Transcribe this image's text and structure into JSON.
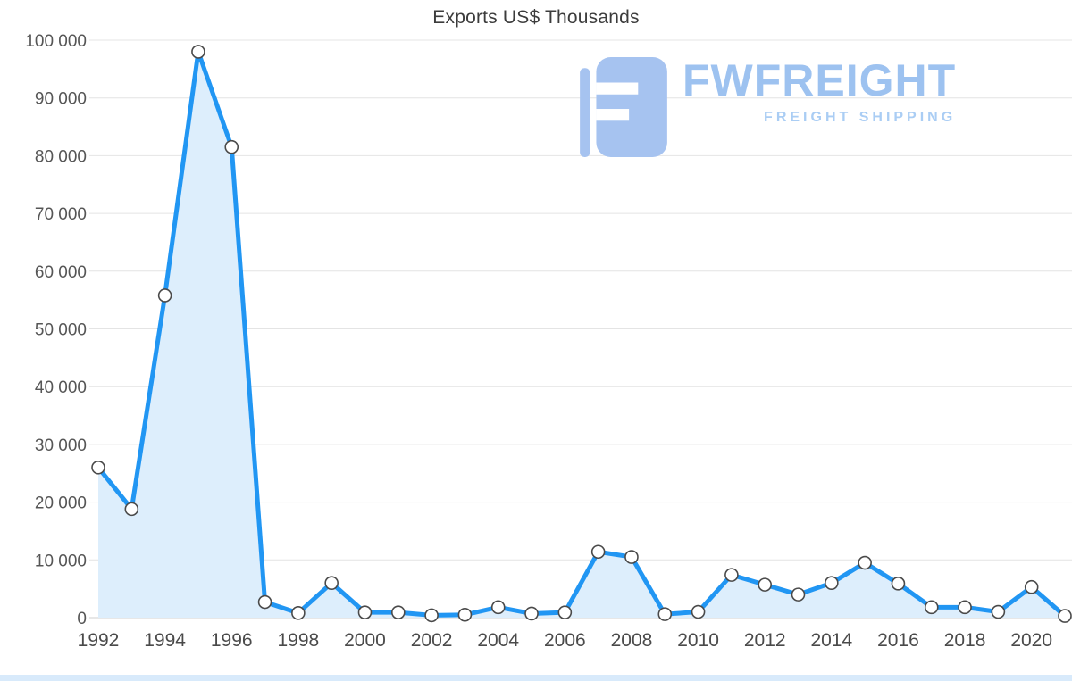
{
  "title": "Exports US$ Thousands",
  "watermark": {
    "brand": "FWFREIGHT",
    "subtitle": "FREIGHT SHIPPING",
    "logo_color": "#a6c3f0"
  },
  "chart_data": {
    "type": "area",
    "title": "Exports US$ Thousands",
    "xlabel": "",
    "ylabel": "",
    "x": [
      1992,
      1993,
      1994,
      1995,
      1996,
      1997,
      1998,
      1999,
      2000,
      2001,
      2002,
      2003,
      2004,
      2005,
      2006,
      2007,
      2008,
      2009,
      2010,
      2011,
      2012,
      2013,
      2014,
      2015,
      2016,
      2017,
      2018,
      2019,
      2020,
      2021
    ],
    "values": [
      26000,
      18800,
      55800,
      98000,
      81500,
      2700,
      800,
      6000,
      900,
      900,
      400,
      500,
      1800,
      700,
      900,
      11400,
      10500,
      600,
      1000,
      7400,
      5700,
      4000,
      6000,
      9500,
      5900,
      1800,
      1800,
      1000,
      5300,
      300
    ],
    "ylim": [
      0,
      100000
    ],
    "y_ticks": [
      0,
      10000,
      20000,
      30000,
      40000,
      50000,
      60000,
      70000,
      80000,
      90000,
      100000
    ],
    "y_tick_labels": [
      "0",
      "10 000",
      "20 000",
      "30 000",
      "40 000",
      "50 000",
      "60 000",
      "70 000",
      "80 000",
      "90 000",
      "100 000"
    ],
    "x_tick_years": [
      1992,
      1994,
      1996,
      1998,
      2000,
      2002,
      2004,
      2006,
      2008,
      2010,
      2012,
      2014,
      2016,
      2018,
      2020
    ],
    "x_tick_labels": [
      "1992",
      "1994",
      "1996",
      "1998",
      "2000",
      "2002",
      "2004",
      "2006",
      "2008",
      "2010",
      "2012",
      "2014",
      "2016",
      "2018",
      "2020"
    ],
    "grid": "horizontal",
    "legend": "none",
    "line_color": "#2196f3",
    "area_color": "#ddeefc",
    "marker_fill": "#ffffff",
    "marker_stroke": "#4a4a4a",
    "gridline_color": "#e4e4e4",
    "baseline_color": "#cfcfcf",
    "tick_text_color": "#565656"
  }
}
